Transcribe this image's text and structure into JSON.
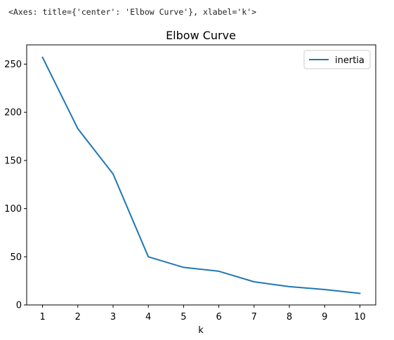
{
  "output_repr": "<Axes: title={'center': 'Elbow Curve'}, xlabel='k'>",
  "chart_data": {
    "type": "line",
    "title": "Elbow Curve",
    "xlabel": "k",
    "ylabel": "",
    "x": [
      1,
      2,
      3,
      4,
      5,
      6,
      7,
      8,
      9,
      10
    ],
    "series": [
      {
        "name": "inertia",
        "color": "#1f77b4",
        "values": [
          257,
          183,
          136,
          50,
          39,
          35,
          24,
          19,
          16,
          12
        ]
      }
    ],
    "xlim": [
      0.55,
      10.45
    ],
    "ylim": [
      0,
      270
    ],
    "xticks": [
      1,
      2,
      3,
      4,
      5,
      6,
      7,
      8,
      9,
      10
    ],
    "yticks": [
      0,
      50,
      100,
      150,
      200,
      250
    ],
    "legend_position": "top-right",
    "grid": false
  }
}
